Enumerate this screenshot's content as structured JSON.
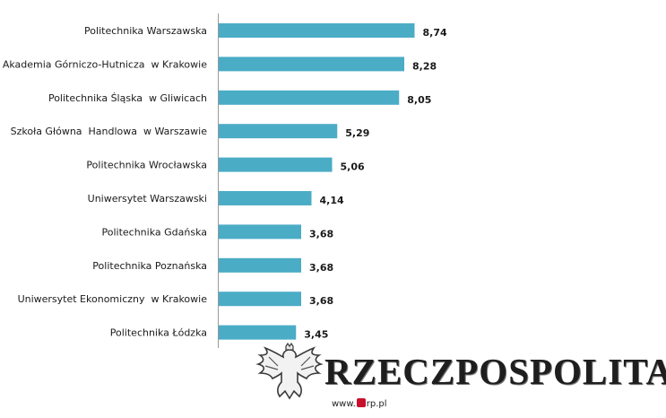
{
  "chart_data": {
    "type": "bar",
    "orientation": "horizontal",
    "categories": [
      "Politechnika Warszawska",
      "Akademia Górniczo-Hutnicza  w Krakowie",
      "Politechnika Śląska  w Gliwicach",
      "Szkoła Główna  Handlowa  w Warszawie",
      "Politechnika Wrocławska",
      "Uniwersytet Warszawski",
      "Politechnika Gdańska",
      "Politechnika Poznańska",
      "Uniwersytet Ekonomiczny  w Krakowie",
      "Politechnika Łódzka"
    ],
    "values": [
      8.74,
      8.28,
      8.05,
      5.29,
      5.06,
      4.14,
      3.68,
      3.68,
      3.68,
      3.45
    ],
    "value_labels": [
      "8,74",
      "8,28",
      "8,05",
      "5,29",
      "5,06",
      "4,14",
      "3,68",
      "3,68",
      "3,68",
      "3,45"
    ],
    "bar_color": "#4BACC6",
    "xlim": [
      0,
      10
    ],
    "grid": false,
    "legend": false
  },
  "logo": {
    "brand": "RZECZPOSPOLITA",
    "url_prefix": "www.",
    "url_suffix": "rp.pl",
    "icon": "eagle-emblem-icon"
  }
}
